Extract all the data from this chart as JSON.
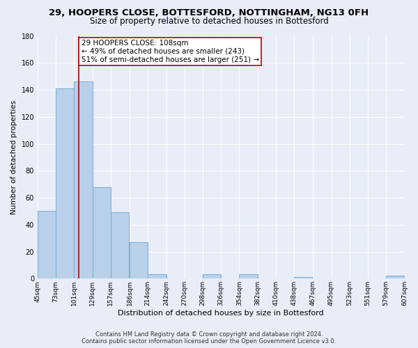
{
  "title_line1": "29, HOOPERS CLOSE, BOTTESFORD, NOTTINGHAM, NG13 0FH",
  "title_line2": "Size of property relative to detached houses in Bottesford",
  "xlabel": "Distribution of detached houses by size in Bottesford",
  "ylabel": "Number of detached properties",
  "bins": [
    45,
    73,
    101,
    129,
    157,
    186,
    214,
    242,
    270,
    298,
    326,
    354,
    382,
    410,
    438,
    467,
    495,
    523,
    551,
    579,
    607
  ],
  "counts": [
    50,
    141,
    146,
    68,
    49,
    27,
    3,
    0,
    0,
    3,
    0,
    3,
    0,
    0,
    1,
    0,
    0,
    0,
    0,
    2
  ],
  "bar_color": "#b8d0ea",
  "bar_edge_color": "#7aadd4",
  "property_line_x": 108,
  "property_line_color": "#bb0000",
  "annotation_line1": "29 HOOPERS CLOSE: 108sqm",
  "annotation_line2": "← 49% of detached houses are smaller (243)",
  "annotation_line3": "51% of semi-detached houses are larger (251) →",
  "ylim": [
    0,
    180
  ],
  "yticks": [
    0,
    20,
    40,
    60,
    80,
    100,
    120,
    140,
    160,
    180
  ],
  "tick_labels": [
    "45sqm",
    "73sqm",
    "101sqm",
    "129sqm",
    "157sqm",
    "186sqm",
    "214sqm",
    "242sqm",
    "270sqm",
    "298sqm",
    "326sqm",
    "354sqm",
    "382sqm",
    "410sqm",
    "438sqm",
    "467sqm",
    "495sqm",
    "523sqm",
    "551sqm",
    "579sqm",
    "607sqm"
  ],
  "footer_line1": "Contains HM Land Registry data © Crown copyright and database right 2024.",
  "footer_line2": "Contains public sector information licensed under the Open Government Licence v3.0.",
  "bg_color": "#e8edf8",
  "plot_bg_color": "#e8edf8",
  "grid_color": "#ffffff",
  "title_fontsize": 9.5,
  "subtitle_fontsize": 8.5,
  "xlabel_fontsize": 8,
  "ylabel_fontsize": 7.5,
  "tick_fontsize": 6.5,
  "footer_fontsize": 6.0,
  "annot_fontsize": 7.5
}
